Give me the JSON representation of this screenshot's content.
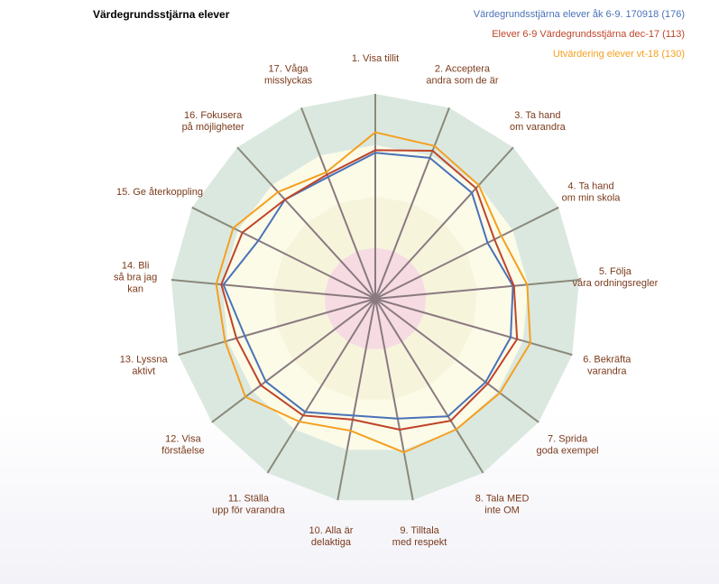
{
  "chart_data": {
    "type": "radar",
    "title": "Värdegrundsstjärna elever",
    "axes": [
      [
        "1. Visa tillit"
      ],
      [
        "2. Acceptera",
        "andra som de är"
      ],
      [
        "3. Ta hand",
        "om varandra"
      ],
      [
        "4. Ta hand",
        "om min skola"
      ],
      [
        "5. Följa",
        "våra ordningsregler"
      ],
      [
        "6. Bekräfta",
        "varandra"
      ],
      [
        "7. Sprida",
        "goda exempel"
      ],
      [
        "8. Tala MED",
        "inte OM"
      ],
      [
        "9. Tilltala",
        "med respekt"
      ],
      [
        "10. Alla är",
        "delaktiga"
      ],
      [
        "11. Ställa",
        "upp för varandra"
      ],
      [
        "12. Visa",
        "förståelse"
      ],
      [
        "13. Lyssna",
        "aktivt"
      ],
      [
        "14. Bli",
        "så bra jag",
        "kan"
      ],
      [
        "15. Ge återkoppling"
      ],
      [
        "16. Fokusera",
        "på möjligheter"
      ],
      [
        "17. Våga",
        "misslyckas"
      ]
    ],
    "bands": {
      "max": 4,
      "levels": [
        1,
        2,
        3,
        4
      ],
      "colors": [
        "#f6dbe3",
        "#f7f4dc",
        "#fbfbe8",
        "#dbe8e0"
      ],
      "axis_color": "#8a8a7a",
      "axis_inner_color": "#8a7a80"
    },
    "series": [
      {
        "name": "Värdegrundsstjärna elever åk 6-9. 170918 (176)",
        "color": "#4a72b8",
        "values": [
          2.85,
          2.95,
          2.8,
          2.45,
          2.7,
          2.75,
          2.7,
          2.7,
          2.38,
          2.32,
          2.6,
          2.68,
          2.65,
          2.98,
          2.55,
          2.62,
          2.55
        ]
      },
      {
        "name": "Elever 6-9 Värdegrundsstjärna dec-17 (113)",
        "color": "#c0442a",
        "values": [
          2.9,
          3.1,
          2.92,
          2.6,
          2.72,
          2.88,
          2.75,
          2.8,
          2.6,
          2.4,
          2.68,
          2.8,
          2.82,
          3.02,
          2.9,
          2.62,
          2.6
        ]
      },
      {
        "name": "Utvärdering elever vt-18 (130)",
        "color": "#f5a020",
        "values": [
          3.25,
          3.2,
          3.0,
          2.75,
          2.98,
          3.15,
          3.05,
          3.0,
          3.05,
          2.62,
          2.82,
          3.18,
          3.05,
          3.12,
          3.1,
          2.82,
          2.65
        ]
      }
    ]
  }
}
